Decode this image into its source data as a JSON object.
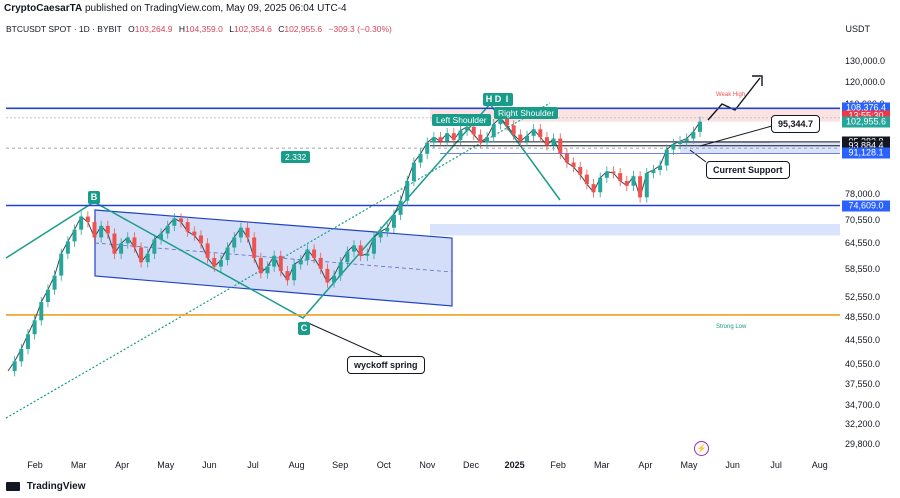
{
  "header": {
    "publisher": "CryptoCaesarTA",
    "published_text": "published on TradingView.com, May 09, 2025 06:04 UTC-4"
  },
  "symbol_bar": {
    "symbol": "BTCUSDT SPOT · 1D · BYBIT",
    "open_label": "O",
    "open": "103,264.9",
    "high_label": "H",
    "high": "104,359.0",
    "low_label": "L",
    "low": "102,354.6",
    "close_label": "C",
    "close": "102,955.6",
    "change": "−309.3 (−0.30%)"
  },
  "currency": "USDT",
  "footer": {
    "brand": "TradingView"
  },
  "colors": {
    "teal": "#1a9c8a",
    "blue_line": "#2144c8",
    "orange_line": "#f0a020",
    "channel_fill": "#c7d3f5",
    "up_candle": "#26a69a",
    "down_candle": "#ef5350",
    "red_tag": "#f23645",
    "blue_tag": "#2962ff",
    "black_tag": "#131722"
  },
  "price_tags": [
    {
      "text": "108,376.4",
      "price": 108376.4,
      "color": "#2962ff"
    },
    {
      "text": "13:55:30",
      "price": 105200,
      "color": "#f23645"
    },
    {
      "text": "102,955.6",
      "price": 102955.6,
      "color": "#26a69a"
    },
    {
      "text": "95,282.8",
      "price": 95282.8,
      "color": "#131722"
    },
    {
      "text": "93,884.4",
      "price": 93884.4,
      "color": "#131722"
    },
    {
      "text": "91,128.1",
      "price": 91128.1,
      "color": "#2962ff"
    },
    {
      "text": "74,609.0",
      "price": 74609.0,
      "color": "#2962ff"
    }
  ],
  "annotations": {
    "left_shoulder": "Left Shoulder",
    "right_shoulder": "Right Shoulder",
    "head_h": "H",
    "head_d": "D",
    "head_i": "I",
    "fib_ratio": "2.332",
    "current_support": "Current Support",
    "target_price": "95,344.7",
    "wyckoff": "wyckoff spring",
    "point_b": "B",
    "point_c": "C",
    "strong_low": "Strong Low",
    "weak_high": "Weak High"
  },
  "chart_data": {
    "type": "line",
    "title": "",
    "xlabel": "",
    "ylabel": "USDT",
    "y_scale": "log",
    "ylim": [
      28500,
      142000
    ],
    "y_ticks": [
      130000,
      120000,
      110000,
      78000,
      70550,
      64550,
      58550,
      52550,
      48550,
      44550,
      40550,
      37550,
      34700,
      32200,
      29800
    ],
    "y_tick_labels": [
      "130,000.0",
      "120,000.0",
      "110,000.0",
      "78,000.0",
      "70,550.0",
      "64,550.0",
      "58,550.0",
      "52,550.0",
      "48,550.0",
      "44,550.0",
      "40,550.0",
      "37,550.0",
      "34,700.0",
      "32,200.0",
      "29,800.0"
    ],
    "x_ticks": [
      "Feb",
      "Mar",
      "Apr",
      "May",
      "Jun",
      "Jul",
      "Aug",
      "Sep",
      "Oct",
      "Nov",
      "Dec",
      "2025",
      "Feb",
      "Mar",
      "Apr",
      "May",
      "Jun",
      "Jul",
      "Aug"
    ],
    "series": [
      {
        "values": [
          39500,
          41000,
          43000,
          45500,
          48000,
          51500,
          54000,
          57000,
          62000,
          65000,
          68000,
          71500,
          70000,
          66000,
          69000,
          67000,
          62000,
          64500,
          66000,
          63500,
          60000,
          62000,
          65500,
          67000,
          69000,
          71000,
          70000,
          67500,
          66500,
          64500,
          61000,
          59000,
          60500,
          63500,
          66000,
          68500,
          66000,
          61000,
          57500,
          59000,
          61500,
          58000,
          56000,
          59500,
          60500,
          63000,
          61000,
          58500,
          55500,
          57000,
          60000,
          62500,
          64000,
          61500,
          62000,
          66000,
          67500,
          68500,
          72000,
          76000,
          82000,
          88000,
          91000,
          95000,
          97000,
          95500,
          98500,
          96000,
          99500,
          101000,
          98000,
          95000,
          97000,
          102000,
          104500,
          101500,
          98000,
          95500,
          97500,
          100000,
          97000,
          94000,
          96500,
          91000,
          88000,
          86500,
          84000,
          81000,
          78500,
          83000,
          85000,
          84500,
          82000,
          80500,
          83500,
          77000,
          84500,
          85500,
          87000,
          92500,
          94500,
          95500,
          96500,
          99000,
          102955.6
        ]
      }
    ],
    "levels": [
      {
        "price": 108376.4,
        "label": "108,376.4"
      },
      {
        "price": 95282.8,
        "label": "95,282.8"
      },
      {
        "price": 93884.4,
        "label": "93,884.4"
      },
      {
        "price": 91128.1,
        "label": "91,128.1"
      },
      {
        "price": 74609.0,
        "label": "74,609.0"
      },
      {
        "price": 49000,
        "label": ""
      }
    ]
  }
}
